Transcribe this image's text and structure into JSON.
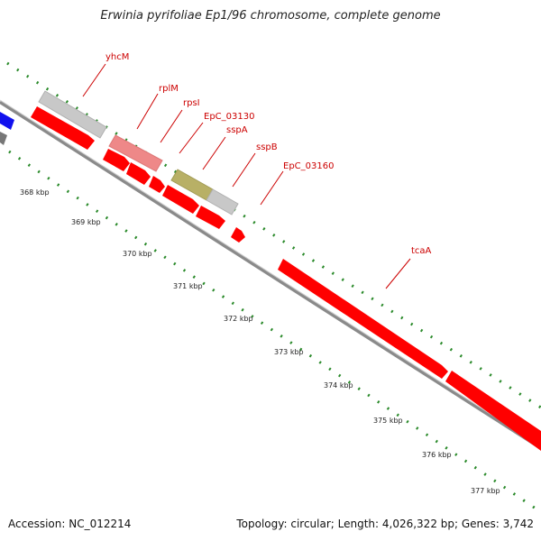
{
  "title": "Erwinia pyrifoliae Ep1/96 chromosome, complete genome",
  "footer": {
    "accession": "Accession: NC_012214",
    "summary": "Topology: circular; Length: 4,026,322 bp; Genes: 3,742"
  },
  "colors": {
    "cds": "#ff0000",
    "cds_faded": "#ee8888",
    "gene_grey": "#c8c8c8",
    "gene_olive": "#b8b066",
    "gene_blue": "#1111ee",
    "backbone": "#8a8a8a",
    "tick": "#2a8a2a",
    "label": "#cc0000"
  },
  "gene_labels": [
    "yhcM",
    "rplM",
    "rpsI",
    "EpC_03130",
    "sspA",
    "sspB",
    "EpC_03160",
    "tcaA"
  ],
  "ticks": [
    "368 kbp",
    "369 kbp",
    "370 kbp",
    "371 kbp",
    "372 kbp",
    "373 kbp",
    "374 kbp",
    "375 kbp",
    "376 kbp",
    "377 kbp"
  ]
}
